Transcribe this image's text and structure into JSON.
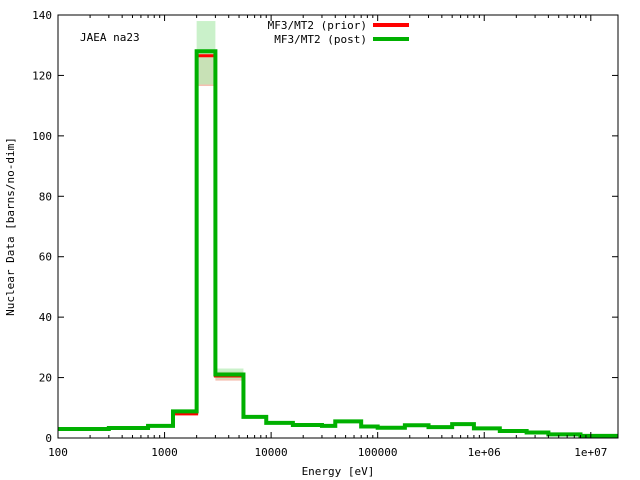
{
  "chart_data": {
    "type": "line",
    "title": "",
    "annotation": "JAEA na23",
    "xlabel": "Energy [eV]",
    "ylabel": "Nuclear Data [barns/no-dim]",
    "xscale": "log",
    "xlim": [
      100,
      18000000
    ],
    "ylim": [
      0,
      140
    ],
    "x_ticks": [
      {
        "value": 100,
        "label": "100"
      },
      {
        "value": 1000,
        "label": "1000"
      },
      {
        "value": 10000,
        "label": "10000"
      },
      {
        "value": 100000,
        "label": "100000"
      },
      {
        "value": 1000000,
        "label": "1e+06"
      },
      {
        "value": 10000000,
        "label": "1e+07"
      }
    ],
    "y_ticks": [
      0,
      20,
      40,
      60,
      80,
      100,
      120,
      140
    ],
    "y_tick_labels": [
      "0",
      "20",
      "40",
      "60",
      "80",
      "100",
      "120",
      "140"
    ],
    "grid": false,
    "legend_position": "top-right",
    "bin_edges": [
      100,
      300,
      700,
      1200,
      2000,
      3000,
      5500,
      9000,
      16000,
      30000,
      40000,
      70000,
      100000,
      180000,
      300000,
      500000,
      800000,
      1400000,
      2500000,
      4000000,
      8000000,
      18000000
    ],
    "series": [
      {
        "name": "MF3/MT2 (prior)",
        "color": "#ff0000",
        "band_color": "#f4b8a8",
        "values": [
          3.0,
          3.3,
          4.0,
          8.0,
          126.5,
          20.5,
          7.0,
          5.0,
          4.3,
          4.0,
          5.5,
          3.8,
          3.4,
          4.2,
          3.6,
          4.6,
          3.2,
          2.3,
          1.8,
          1.2,
          0.7
        ],
        "band_lower": [
          2.9,
          3.2,
          3.8,
          7.5,
          116.5,
          19.0,
          6.6,
          4.7,
          4.0,
          3.7,
          5.1,
          3.5,
          3.1,
          3.9,
          3.3,
          4.3,
          2.9,
          2.1,
          1.6,
          1.0,
          0.5
        ],
        "band_upper": [
          3.1,
          3.4,
          4.2,
          8.5,
          128.5,
          22.0,
          7.4,
          5.3,
          4.6,
          4.3,
          5.9,
          4.1,
          3.7,
          4.5,
          3.9,
          4.9,
          3.5,
          2.5,
          2.0,
          1.4,
          0.9
        ]
      },
      {
        "name": "MF3/MT2 (post)",
        "color": "#00b000",
        "band_color": "#b8ecb8",
        "values": [
          3.0,
          3.3,
          4.0,
          8.8,
          128.0,
          21.0,
          7.0,
          5.0,
          4.3,
          4.0,
          5.5,
          3.8,
          3.4,
          4.2,
          3.6,
          4.6,
          3.2,
          2.3,
          1.8,
          1.2,
          0.7
        ],
        "band_lower": [
          2.9,
          3.2,
          3.8,
          8.2,
          117.0,
          19.5,
          6.6,
          4.7,
          4.0,
          3.7,
          5.1,
          3.5,
          3.1,
          3.9,
          3.3,
          4.3,
          2.9,
          2.1,
          1.6,
          1.0,
          0.5
        ],
        "band_upper": [
          3.1,
          3.4,
          4.2,
          9.4,
          138.0,
          23.0,
          7.4,
          5.3,
          4.6,
          4.3,
          5.9,
          4.1,
          3.7,
          4.5,
          3.9,
          4.9,
          3.5,
          2.5,
          2.0,
          1.4,
          0.9
        ]
      }
    ]
  }
}
